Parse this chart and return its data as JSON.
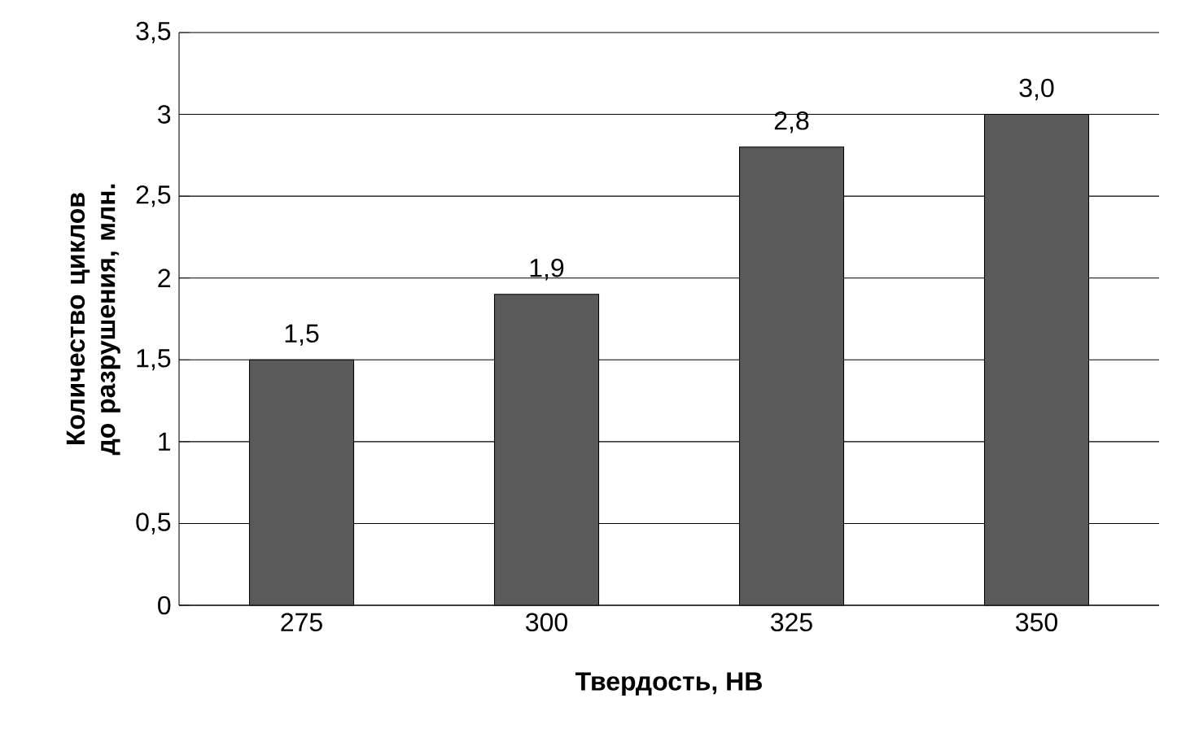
{
  "chart_data": {
    "type": "bar",
    "xlabel": "Твердость, НВ",
    "ylabel": "Количество циклов до разрушения, млн.",
    "categories": [
      "275",
      "300",
      "325",
      "350"
    ],
    "values": [
      1.5,
      1.9,
      2.8,
      3.0
    ],
    "value_labels": [
      "1,5",
      "1,9",
      "2,8",
      "3,0"
    ],
    "color": "#5a5a5a",
    "ylim": [
      0,
      3.5
    ],
    "yticks": [
      0,
      {
        "value": 0.5,
        "label": "0,5"
      },
      1,
      {
        "value": 1.5,
        "label": "1,5"
      },
      2,
      {
        "value": 2.5,
        "label": "2,5"
      },
      3,
      {
        "value": 3.5,
        "label": "3,5"
      }
    ],
    "grid": "y"
  }
}
